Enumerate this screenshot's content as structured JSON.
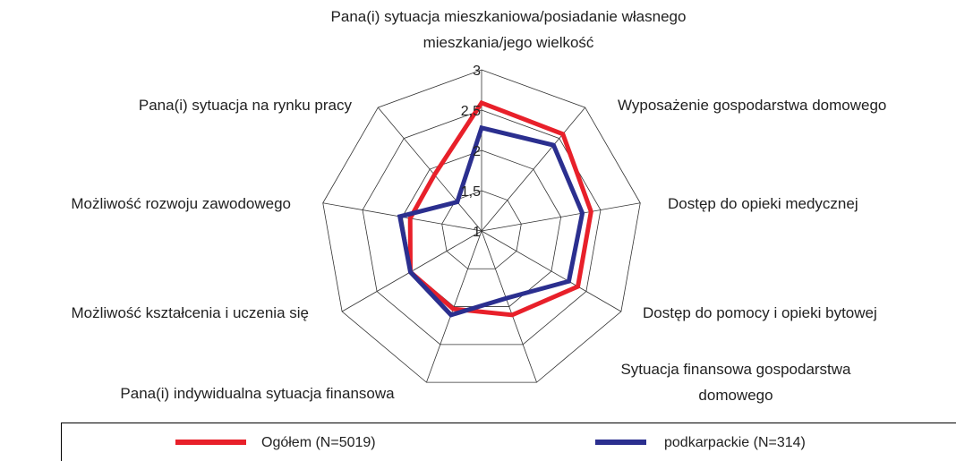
{
  "chart_data": {
    "type": "radar",
    "categories": [
      "Pana(i) sytuacja mieszkaniowa/posiadanie własnego mieszkania/jego wielkość",
      "Wyposażenie gospodarstwa domowego",
      "Dostęp do opieki medycznej",
      "Dostęp do pomocy i opieki bytowej",
      "Sytuacja finansowa gospodarstwa domowego",
      "Pana(i) indywidualna sytuacja finansowa",
      "Możliwość kształcenia i uczenia się",
      "Możliwość rozwoju zawodowego",
      "Pana(i) sytuacja na rynku pracy"
    ],
    "series": [
      {
        "name": "Ogółem (N=5019)",
        "color": "#e8202a",
        "values": [
          2.59,
          2.57,
          2.38,
          2.38,
          2.11,
          2.03,
          2.02,
          1.9,
          1.91
        ]
      },
      {
        "name": "podkarpackie (N=314)",
        "color": "#2b2f8f",
        "values": [
          2.28,
          2.39,
          2.27,
          2.25,
          1.89,
          2.11,
          2.02,
          2.03,
          1.47
        ]
      }
    ],
    "ylim": [
      1,
      3
    ],
    "yticks": [
      1,
      {
        "value": 1.5,
        "label": "1,5"
      },
      2,
      {
        "value": 2.5,
        "label": "2,5"
      },
      3
    ],
    "grid": true
  }
}
